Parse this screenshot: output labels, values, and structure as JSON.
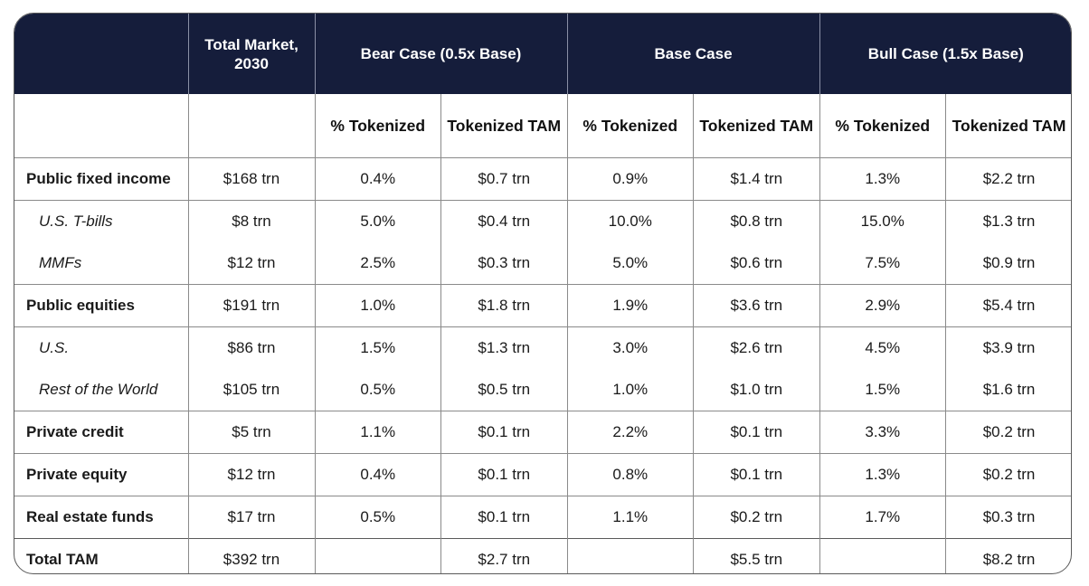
{
  "header": {
    "total_market": "Total Market, 2030",
    "bear": "Bear Case (0.5x Base)",
    "base": "Base Case",
    "bull": "Bull Case (1.5x Base)",
    "sub_pct": "% Tokenized",
    "sub_tam": "Tokenized TAM"
  },
  "rows": [
    {
      "label": "Public fixed income",
      "market": "$168 trn",
      "bear_pct": "0.4%",
      "bear_tam": "$0.7 trn",
      "base_pct": "0.9%",
      "base_tam": "$1.4 trn",
      "bull_pct": "1.3%",
      "bull_tam": "$2.2 trn"
    },
    {
      "label": "U.S. T-bills",
      "market": "$8 trn",
      "bear_pct": "5.0%",
      "bear_tam": "$0.4 trn",
      "base_pct": "10.0%",
      "base_tam": "$0.8 trn",
      "bull_pct": "15.0%",
      "bull_tam": "$1.3 trn"
    },
    {
      "label": "MMFs",
      "market": "$12 trn",
      "bear_pct": "2.5%",
      "bear_tam": "$0.3 trn",
      "base_pct": "5.0%",
      "base_tam": "$0.6 trn",
      "bull_pct": "7.5%",
      "bull_tam": "$0.9 trn"
    },
    {
      "label": "Public equities",
      "market": "$191 trn",
      "bear_pct": "1.0%",
      "bear_tam": "$1.8 trn",
      "base_pct": "1.9%",
      "base_tam": "$3.6 trn",
      "bull_pct": "2.9%",
      "bull_tam": "$5.4 trn"
    },
    {
      "label": "U.S.",
      "market": "$86 trn",
      "bear_pct": "1.5%",
      "bear_tam": "$1.3 trn",
      "base_pct": "3.0%",
      "base_tam": "$2.6 trn",
      "bull_pct": "4.5%",
      "bull_tam": "$3.9 trn"
    },
    {
      "label": "Rest of the World",
      "market": "$105 trn",
      "bear_pct": "0.5%",
      "bear_tam": "$0.5 trn",
      "base_pct": "1.0%",
      "base_tam": "$1.0 trn",
      "bull_pct": "1.5%",
      "bull_tam": "$1.6 trn"
    },
    {
      "label": "Private credit",
      "market": "$5 trn",
      "bear_pct": "1.1%",
      "bear_tam": "$0.1 trn",
      "base_pct": "2.2%",
      "base_tam": "$0.1 trn",
      "bull_pct": "3.3%",
      "bull_tam": "$0.2 trn"
    },
    {
      "label": "Private equity",
      "market": "$12 trn",
      "bear_pct": "0.4%",
      "bear_tam": "$0.1 trn",
      "base_pct": "0.8%",
      "base_tam": "$0.1 trn",
      "bull_pct": "1.3%",
      "bull_tam": "$0.2 trn"
    },
    {
      "label": "Real estate funds",
      "market": "$17 trn",
      "bear_pct": "0.5%",
      "bear_tam": "$0.1 trn",
      "base_pct": "1.1%",
      "base_tam": "$0.2 trn",
      "bull_pct": "1.7%",
      "bull_tam": "$0.3 trn"
    }
  ],
  "total": {
    "label": "Total TAM",
    "market": "$392 trn",
    "bear_pct": "",
    "bear_tam": "$2.7 trn",
    "base_pct": "",
    "base_tam": "$5.5 trn",
    "bull_pct": "",
    "bull_tam": "$8.2 trn"
  }
}
